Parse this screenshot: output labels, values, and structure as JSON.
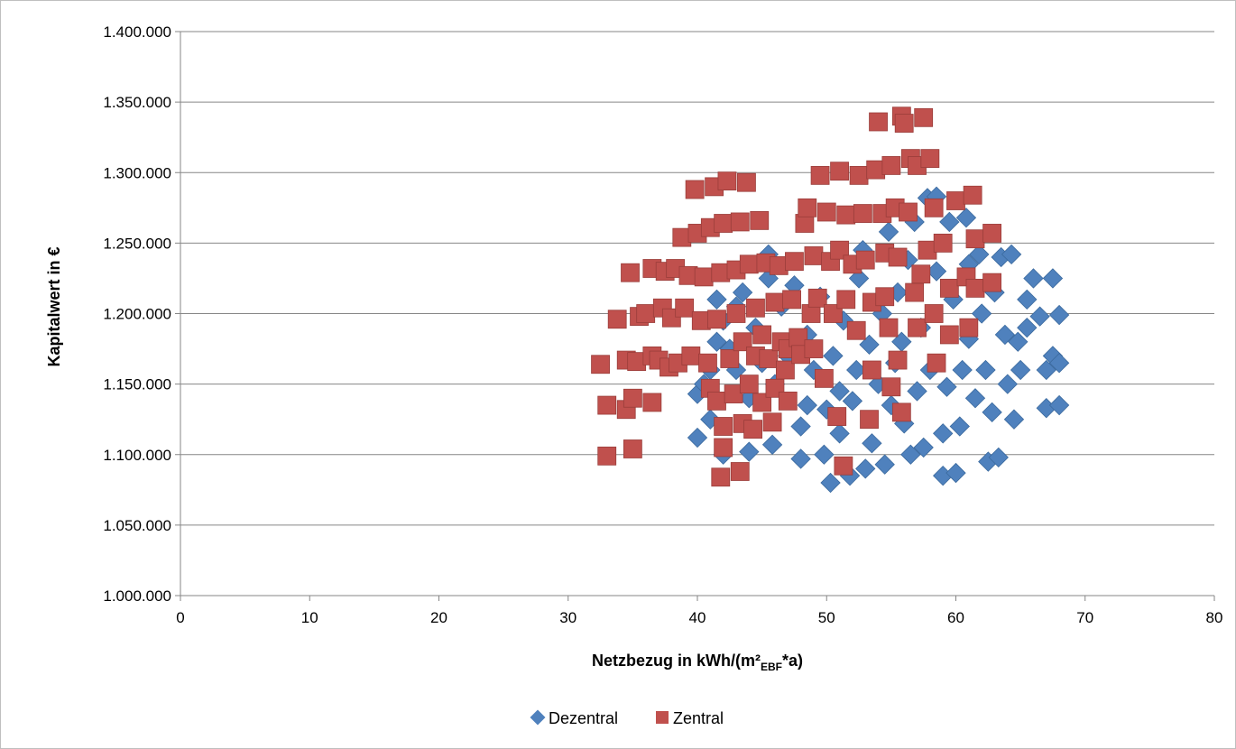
{
  "chart_data": {
    "type": "scatter",
    "title": "",
    "xlabel": {
      "prefix": "Netzbezug in kWh/(m²",
      "subscript": "EBF",
      "suffix": "*a)"
    },
    "ylabel": "Kapitalwert in €",
    "xlim": [
      0,
      80
    ],
    "ylim": [
      1000000,
      1400000
    ],
    "x_ticks": [
      "0",
      "10",
      "20",
      "30",
      "40",
      "50",
      "60",
      "70",
      "80"
    ],
    "y_ticks": [
      "1.000.000",
      "1.050.000",
      "1.100.000",
      "1.150.000",
      "1.200.000",
      "1.250.000",
      "1.300.000",
      "1.350.000",
      "1.400.000"
    ],
    "grid": "horizontal",
    "legend": "bottom",
    "series": [
      {
        "name": "Dezentral",
        "marker": "diamond",
        "color": "#4f81bd",
        "points": [
          [
            40,
            1112000
          ],
          [
            40,
            1143000
          ],
          [
            40.5,
            1150000
          ],
          [
            41,
            1160000
          ],
          [
            41.5,
            1180000
          ],
          [
            41.5,
            1210000
          ],
          [
            41,
            1125000
          ],
          [
            42,
            1100000
          ],
          [
            42,
            1195000
          ],
          [
            42.5,
            1175000
          ],
          [
            43,
            1205000
          ],
          [
            43,
            1160000
          ],
          [
            43.5,
            1215000
          ],
          [
            44,
            1102000
          ],
          [
            44,
            1140000
          ],
          [
            44.5,
            1190000
          ],
          [
            45,
            1165000
          ],
          [
            45.5,
            1225000
          ],
          [
            45.5,
            1242000
          ],
          [
            45.8,
            1107000
          ],
          [
            46,
            1150000
          ],
          [
            46.5,
            1205000
          ],
          [
            47,
            1170000
          ],
          [
            47.5,
            1220000
          ],
          [
            48,
            1097000
          ],
          [
            48,
            1120000
          ],
          [
            48.5,
            1135000
          ],
          [
            48.5,
            1185000
          ],
          [
            49,
            1160000
          ],
          [
            49.5,
            1212000
          ],
          [
            49.8,
            1100000
          ],
          [
            50,
            1132000
          ],
          [
            50.3,
            1080000
          ],
          [
            50.5,
            1170000
          ],
          [
            51,
            1115000
          ],
          [
            51,
            1145000
          ],
          [
            51.3,
            1195000
          ],
          [
            51.8,
            1085000
          ],
          [
            52,
            1138000
          ],
          [
            52.3,
            1160000
          ],
          [
            52.5,
            1225000
          ],
          [
            52.8,
            1245000
          ],
          [
            53,
            1090000
          ],
          [
            53.3,
            1178000
          ],
          [
            53.5,
            1108000
          ],
          [
            54,
            1150000
          ],
          [
            54.3,
            1200000
          ],
          [
            54.5,
            1093000
          ],
          [
            54.8,
            1258000
          ],
          [
            55,
            1135000
          ],
          [
            55.3,
            1165000
          ],
          [
            55.5,
            1215000
          ],
          [
            55.8,
            1180000
          ],
          [
            56,
            1122000
          ],
          [
            56.3,
            1238000
          ],
          [
            56.5,
            1100000
          ],
          [
            56.8,
            1265000
          ],
          [
            57,
            1145000
          ],
          [
            57.3,
            1190000
          ],
          [
            57.5,
            1105000
          ],
          [
            57.8,
            1282000
          ],
          [
            58,
            1160000
          ],
          [
            58.5,
            1283000
          ],
          [
            58.5,
            1230000
          ],
          [
            59,
            1085000
          ],
          [
            59,
            1115000
          ],
          [
            59.3,
            1148000
          ],
          [
            59.5,
            1265000
          ],
          [
            59.8,
            1210000
          ],
          [
            60,
            1087000
          ],
          [
            60.3,
            1120000
          ],
          [
            60.5,
            1160000
          ],
          [
            60.8,
            1268000
          ],
          [
            61,
            1182000
          ],
          [
            61,
            1235000
          ],
          [
            61.5,
            1140000
          ],
          [
            61.8,
            1242000
          ],
          [
            62,
            1200000
          ],
          [
            62.3,
            1160000
          ],
          [
            62.5,
            1095000
          ],
          [
            62.8,
            1130000
          ],
          [
            63,
            1215000
          ],
          [
            63.3,
            1098000
          ],
          [
            63.5,
            1240000
          ],
          [
            63.8,
            1185000
          ],
          [
            64,
            1150000
          ],
          [
            64.3,
            1242000
          ],
          [
            64.5,
            1125000
          ],
          [
            64.8,
            1180000
          ],
          [
            65,
            1160000
          ],
          [
            65.5,
            1210000
          ],
          [
            65.5,
            1190000
          ],
          [
            66,
            1225000
          ],
          [
            66.5,
            1198000
          ],
          [
            67,
            1133000
          ],
          [
            67,
            1160000
          ],
          [
            67.5,
            1225000
          ],
          [
            67.5,
            1170000
          ],
          [
            68,
            1135000
          ],
          [
            68,
            1165000
          ],
          [
            68,
            1199000
          ]
        ]
      },
      {
        "name": "Zentral",
        "marker": "square",
        "color": "#c0504d",
        "points": [
          [
            32.5,
            1164000
          ],
          [
            33,
            1135000
          ],
          [
            33,
            1099000
          ],
          [
            33.8,
            1196000
          ],
          [
            34.5,
            1167000
          ],
          [
            34.5,
            1132000
          ],
          [
            34.8,
            1229000
          ],
          [
            35,
            1104000
          ],
          [
            35,
            1140000
          ],
          [
            35.3,
            1166000
          ],
          [
            35.5,
            1198000
          ],
          [
            36,
            1200000
          ],
          [
            36.5,
            1232000
          ],
          [
            36.5,
            1170000
          ],
          [
            36.5,
            1137000
          ],
          [
            37,
            1167000
          ],
          [
            37.3,
            1204000
          ],
          [
            37.5,
            1230000
          ],
          [
            37.8,
            1162000
          ],
          [
            38,
            1197000
          ],
          [
            38.3,
            1232000
          ],
          [
            38.5,
            1165000
          ],
          [
            38.8,
            1254000
          ],
          [
            39,
            1204000
          ],
          [
            39.3,
            1227000
          ],
          [
            39.5,
            1170000
          ],
          [
            39.8,
            1288000
          ],
          [
            40,
            1257000
          ],
          [
            40.3,
            1195000
          ],
          [
            40.5,
            1226000
          ],
          [
            40.8,
            1165000
          ],
          [
            41,
            1147000
          ],
          [
            41,
            1261000
          ],
          [
            41.3,
            1290000
          ],
          [
            41.5,
            1138000
          ],
          [
            41.5,
            1196000
          ],
          [
            41.8,
            1229000
          ],
          [
            41.8,
            1084000
          ],
          [
            42,
            1105000
          ],
          [
            42,
            1120000
          ],
          [
            42,
            1264000
          ],
          [
            42.3,
            1294000
          ],
          [
            42.5,
            1168000
          ],
          [
            42.8,
            1143000
          ],
          [
            43,
            1200000
          ],
          [
            43,
            1231000
          ],
          [
            43.3,
            1265000
          ],
          [
            43.3,
            1088000
          ],
          [
            43.5,
            1122000
          ],
          [
            43.5,
            1180000
          ],
          [
            43.8,
            1293000
          ],
          [
            44,
            1150000
          ],
          [
            44,
            1235000
          ],
          [
            44.3,
            1118000
          ],
          [
            44.5,
            1170000
          ],
          [
            44.5,
            1204000
          ],
          [
            44.8,
            1266000
          ],
          [
            45,
            1137000
          ],
          [
            45,
            1185000
          ],
          [
            45.3,
            1236000
          ],
          [
            45.5,
            1168000
          ],
          [
            45.8,
            1123000
          ],
          [
            46,
            1147000
          ],
          [
            46,
            1208000
          ],
          [
            46.3,
            1234000
          ],
          [
            46.5,
            1180000
          ],
          [
            46.8,
            1160000
          ],
          [
            47,
            1138000
          ],
          [
            47,
            1175000
          ],
          [
            47.3,
            1210000
          ],
          [
            47.5,
            1237000
          ],
          [
            47.8,
            1183000
          ],
          [
            48,
            1171000
          ],
          [
            48.3,
            1264000
          ],
          [
            48.5,
            1275000
          ],
          [
            48.8,
            1200000
          ],
          [
            49,
            1241000
          ],
          [
            49,
            1175000
          ],
          [
            49.3,
            1211000
          ],
          [
            49.5,
            1298000
          ],
          [
            49.8,
            1154000
          ],
          [
            50,
            1272000
          ],
          [
            50.3,
            1237000
          ],
          [
            50.5,
            1200000
          ],
          [
            50.8,
            1127000
          ],
          [
            51,
            1301000
          ],
          [
            51,
            1245000
          ],
          [
            51.3,
            1092000
          ],
          [
            51.5,
            1270000
          ],
          [
            51.5,
            1210000
          ],
          [
            52,
            1235000
          ],
          [
            52.3,
            1188000
          ],
          [
            52.5,
            1298000
          ],
          [
            52.8,
            1271000
          ],
          [
            53,
            1238000
          ],
          [
            53.3,
            1125000
          ],
          [
            53.5,
            1208000
          ],
          [
            53.5,
            1160000
          ],
          [
            53.8,
            1302000
          ],
          [
            54,
            1336000
          ],
          [
            54.3,
            1271000
          ],
          [
            54.5,
            1243000
          ],
          [
            54.5,
            1212000
          ],
          [
            54.8,
            1190000
          ],
          [
            55,
            1148000
          ],
          [
            55,
            1305000
          ],
          [
            55.3,
            1275000
          ],
          [
            55.5,
            1240000
          ],
          [
            55.5,
            1167000
          ],
          [
            55.8,
            1130000
          ],
          [
            55.8,
            1340000
          ],
          [
            56,
            1335000
          ],
          [
            56.3,
            1272000
          ],
          [
            56.5,
            1310000
          ],
          [
            56.8,
            1215000
          ],
          [
            57,
            1305000
          ],
          [
            57,
            1190000
          ],
          [
            57.3,
            1228000
          ],
          [
            57.5,
            1339000
          ],
          [
            57.8,
            1245000
          ],
          [
            58,
            1310000
          ],
          [
            58.3,
            1275000
          ],
          [
            58.3,
            1200000
          ],
          [
            58.5,
            1165000
          ],
          [
            59,
            1250000
          ],
          [
            59.5,
            1218000
          ],
          [
            59.5,
            1185000
          ],
          [
            60,
            1280000
          ],
          [
            60.8,
            1226000
          ],
          [
            61,
            1190000
          ],
          [
            61.3,
            1284000
          ],
          [
            61.5,
            1253000
          ],
          [
            61.5,
            1218000
          ],
          [
            62.8,
            1257000
          ],
          [
            62.8,
            1222000
          ]
        ]
      }
    ]
  }
}
